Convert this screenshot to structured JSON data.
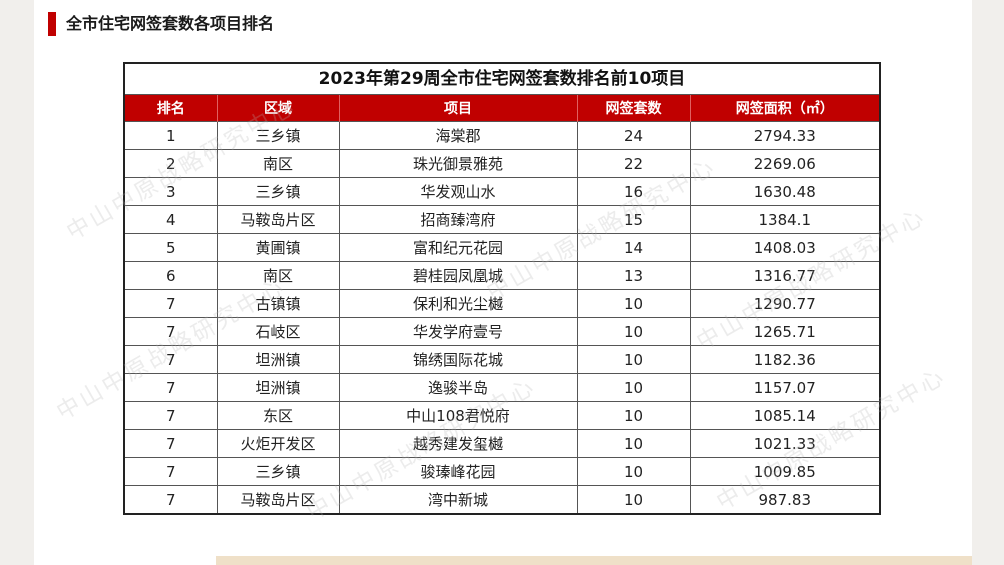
{
  "heading": "全市住宅网签套数各项目排名",
  "table": {
    "title": "2023年第29周全市住宅网签套数排名前10项目",
    "columns": [
      "排名",
      "区域",
      "项目",
      "网签套数",
      "网签面积（㎡）"
    ],
    "rows": [
      [
        "1",
        "三乡镇",
        "海棠郡",
        "24",
        "2794.33"
      ],
      [
        "2",
        "南区",
        "珠光御景雅苑",
        "22",
        "2269.06"
      ],
      [
        "3",
        "三乡镇",
        "华发观山水",
        "16",
        "1630.48"
      ],
      [
        "4",
        "马鞍岛片区",
        "招商臻湾府",
        "15",
        "1384.1"
      ],
      [
        "5",
        "黄圃镇",
        "富和纪元花园",
        "14",
        "1408.03"
      ],
      [
        "6",
        "南区",
        "碧桂园凤凰城",
        "13",
        "1316.77"
      ],
      [
        "7",
        "古镇镇",
        "保利和光尘樾",
        "10",
        "1290.77"
      ],
      [
        "7",
        "石岐区",
        "华发学府壹号",
        "10",
        "1265.71"
      ],
      [
        "7",
        "坦洲镇",
        "锦绣国际花城",
        "10",
        "1182.36"
      ],
      [
        "7",
        "坦洲镇",
        "逸骏半岛",
        "10",
        "1157.07"
      ],
      [
        "7",
        "东区",
        "中山108君悦府",
        "10",
        "1085.14"
      ],
      [
        "7",
        "火炬开发区",
        "越秀建发玺樾",
        "10",
        "1021.33"
      ],
      [
        "7",
        "三乡镇",
        "骏瑧峰花园",
        "10",
        "1009.85"
      ],
      [
        "7",
        "马鞍岛片区",
        "湾中新城",
        "10",
        "987.83"
      ]
    ]
  },
  "watermark": "中山中原战略研究中心",
  "colors": {
    "accent": "#c00000",
    "header_text": "#ffffff",
    "bottom_bar": "#efe0c8"
  }
}
